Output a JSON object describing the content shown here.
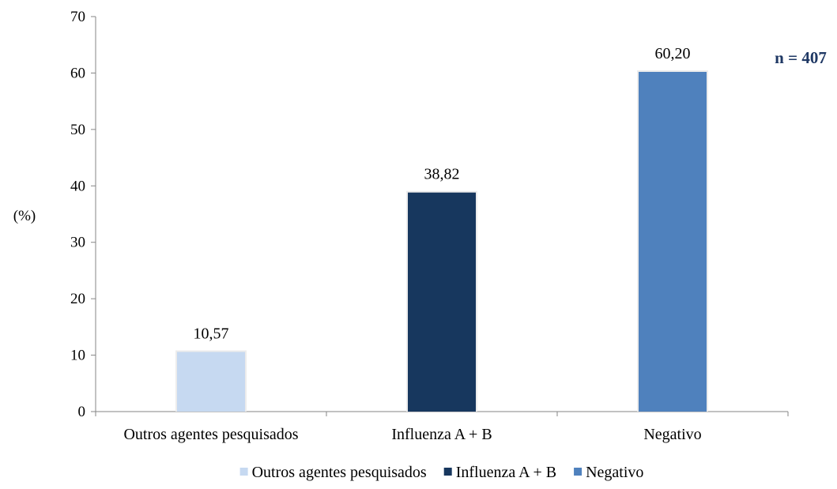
{
  "chart_data": {
    "type": "bar",
    "categories": [
      "Outros agentes pesquisados",
      "Influenza A + B",
      "Negativo"
    ],
    "values": [
      10.57,
      38.82,
      60.2
    ],
    "data_labels": [
      "10,57",
      "38,82",
      "60,20"
    ],
    "colors": [
      "#c6d9f1",
      "#17375e",
      "#4f81bd"
    ],
    "title": "",
    "xlabel": "",
    "ylabel": "(%)",
    "ylim": [
      0,
      70
    ],
    "yticks": [
      0,
      10,
      20,
      30,
      40,
      50,
      60,
      70
    ],
    "grid": false,
    "legend": {
      "position": "bottom",
      "entries": [
        "Outros agentes pesquisados",
        "Influenza A + B",
        "Negativo"
      ]
    },
    "annotation": "n = 407",
    "annotation_color": "#1f3864"
  }
}
